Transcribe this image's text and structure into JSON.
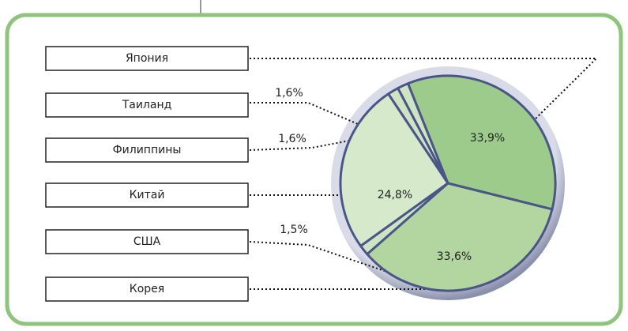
{
  "chart_data": {
    "type": "pie",
    "categories": [
      "Япония",
      "Таиланд",
      "Филиппины",
      "Китай",
      "США",
      "Корея"
    ],
    "values": [
      33.9,
      1.6,
      1.6,
      24.8,
      1.5,
      33.6
    ],
    "value_labels": [
      "33,9%",
      "1,6%",
      "1,6%",
      "24,8%",
      "1,5%",
      "33,6%"
    ],
    "colors": [
      "#9ccb8b",
      "#cfe4c3",
      "#cfe4c3",
      "#d6e9cb",
      "#cfe4c3",
      "#b3d6a1"
    ]
  }
}
